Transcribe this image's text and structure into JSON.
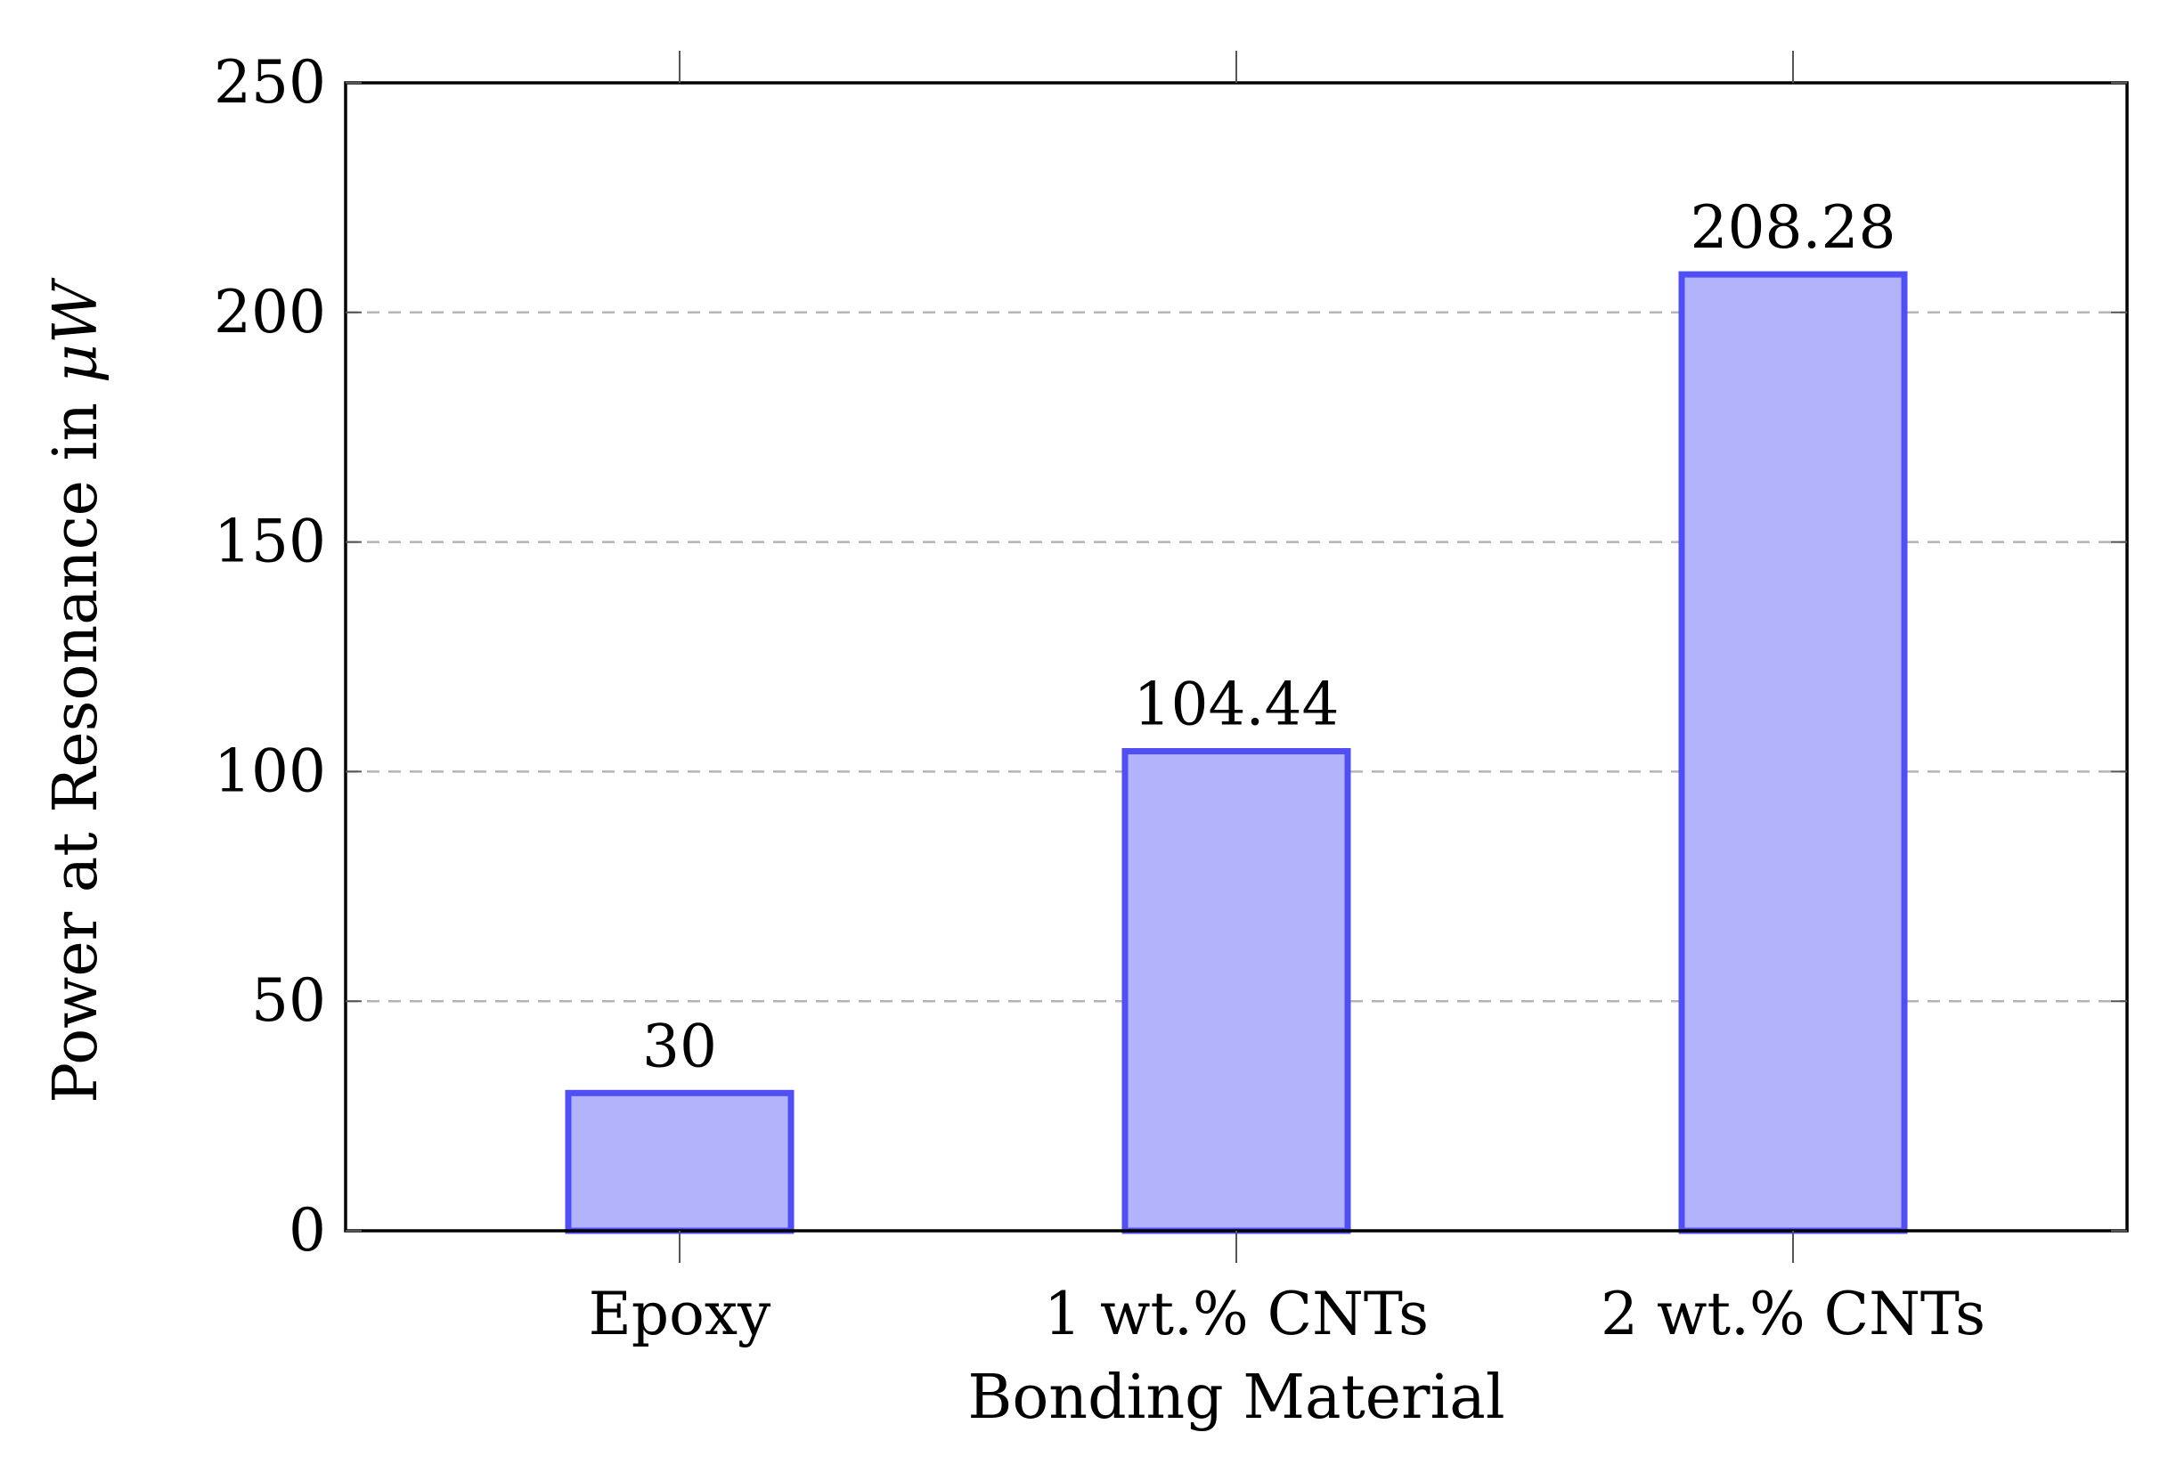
{
  "chart_data": {
    "type": "bar",
    "categories": [
      "Epoxy",
      "1 wt.% CNTs",
      "2 wt.% CNTs"
    ],
    "values": [
      30,
      104.44,
      208.28
    ],
    "data_labels": [
      "30",
      "104.44",
      "208.28"
    ],
    "title": "",
    "xlabel": "Bonding Material",
    "ylabel_prefix": "Power at Resonance in ",
    "ylabel_unit": "μW",
    "ylim": [
      0,
      250
    ],
    "yticks": [
      0,
      50,
      100,
      150,
      200,
      250
    ],
    "grid": "horizontal-dashed",
    "legend": "none",
    "colors": {
      "bar_fill": "#b3b3fb",
      "bar_stroke": "#4f4ff5",
      "grid": "#b5b5b5",
      "axis": "#000000"
    }
  }
}
